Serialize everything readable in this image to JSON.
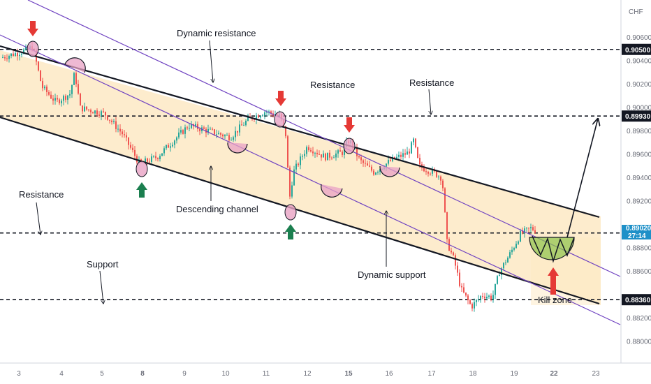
{
  "chart_data": {
    "type": "candlestick",
    "currency": "CHF",
    "y_axis": {
      "ticks": [
        "0.90600",
        "0.90400",
        "0.90200",
        "0.90000",
        "0.89800",
        "0.89600",
        "0.89400",
        "0.89200",
        "0.88800",
        "0.88600",
        "0.88200",
        "0.88000"
      ],
      "tick_values": [
        0.906,
        0.904,
        0.902,
        0.9,
        0.898,
        0.896,
        0.894,
        0.892,
        0.888,
        0.886,
        0.882,
        0.88
      ],
      "range": [
        0.8786,
        0.9091
      ]
    },
    "x_axis": {
      "ticks": [
        "3",
        "4",
        "5",
        "8",
        "9",
        "10",
        "11",
        "12",
        "15",
        "16",
        "17",
        "18",
        "19",
        "22",
        "23"
      ],
      "bold_ticks": [
        "8",
        "15",
        "22"
      ]
    },
    "price_levels": [
      {
        "label": "0.90500",
        "value": 0.905,
        "style": "dashed"
      },
      {
        "label": "0.89930",
        "value": 0.8993,
        "style": "dashed"
      },
      {
        "label": "0.88930",
        "value": 0.8893,
        "style": "dashed"
      },
      {
        "label": "0.88360",
        "value": 0.8836,
        "style": "dashed"
      }
    ],
    "current_price": {
      "value": "0.89020",
      "countdown": "27:14"
    },
    "annotations": {
      "dynamic_resistance": "Dynamic resistance",
      "resistance_top_1": "Resistance",
      "resistance_top_2": "Resistance",
      "resistance_left": "Resistance",
      "support": "Support",
      "descending_channel": "Descending channel",
      "dynamic_support": "Dynamic support",
      "kill_zone": "Kill zone"
    },
    "trend_lines": [
      {
        "name": "Descending channel upper",
        "color": "#131722"
      },
      {
        "name": "Descending channel lower",
        "color": "#131722"
      },
      {
        "name": "Dynamic resistance",
        "color": "#6f42c1"
      },
      {
        "name": "Dynamic support",
        "color": "#6f42c1"
      }
    ],
    "colors": {
      "up": "#26a69a",
      "down": "#ef5350",
      "channel_fill": "#fde9c4",
      "kill_zone_fill": "#8bc34a",
      "arrow_sell": "#e53935",
      "arrow_buy": "#1b7f4f",
      "circle_marker": "#e8a2c4"
    }
  }
}
